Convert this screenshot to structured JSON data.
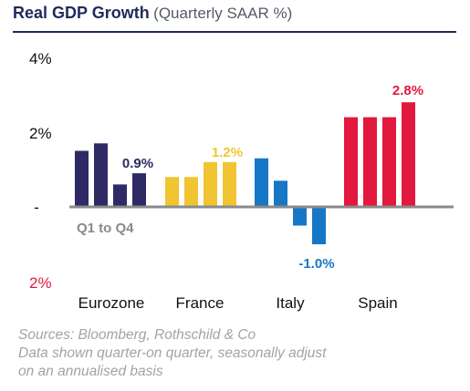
{
  "title": "Real GDP Growth",
  "subtitle": "(Quarterly SAAR %)",
  "chart_data": {
    "type": "bar",
    "title": "Real GDP Growth",
    "subtitle": "(Quarterly SAAR %)",
    "categories": [
      "Eurozone",
      "France",
      "Italy",
      "Spain"
    ],
    "quarters": [
      "Q1",
      "Q2",
      "Q3",
      "Q4"
    ],
    "series": [
      {
        "values": [
          1.5,
          1.7,
          0.6,
          0.9
        ],
        "color": "#2e2a66",
        "label": "0.9%",
        "label_color": "#2e2a66"
      },
      {
        "values": [
          0.8,
          0.8,
          1.2,
          1.2
        ],
        "color": "#f0c531",
        "label": "1.2%",
        "label_color": "#f0c531"
      },
      {
        "values": [
          1.3,
          0.7,
          -0.5,
          -1.0
        ],
        "color": "#1677c7",
        "label": "-1.0%",
        "label_color": "#1677c7"
      },
      {
        "values": [
          2.4,
          2.4,
          2.4,
          2.8
        ],
        "color": "#e3183e",
        "label": "2.8%",
        "label_color": "#e3183e"
      }
    ],
    "y_ticks": [
      {
        "value": 4,
        "label": "4%",
        "color": "#111111"
      },
      {
        "value": 2,
        "label": "2%",
        "color": "#111111"
      },
      {
        "value": 0,
        "label": "-",
        "color": "#111111"
      },
      {
        "value": -2,
        "label": "2%",
        "color": "#e3183e"
      }
    ],
    "ylim": [
      -2,
      4
    ],
    "annotation": "Q1 to Q4",
    "grid": false,
    "zero_line_color": "#8a8a8a"
  },
  "footnote": [
    "Sources: Bloomberg, Rothschild & Co",
    "Data shown quarter-on quarter, seasonally adjust",
    "on an annualised basis"
  ]
}
